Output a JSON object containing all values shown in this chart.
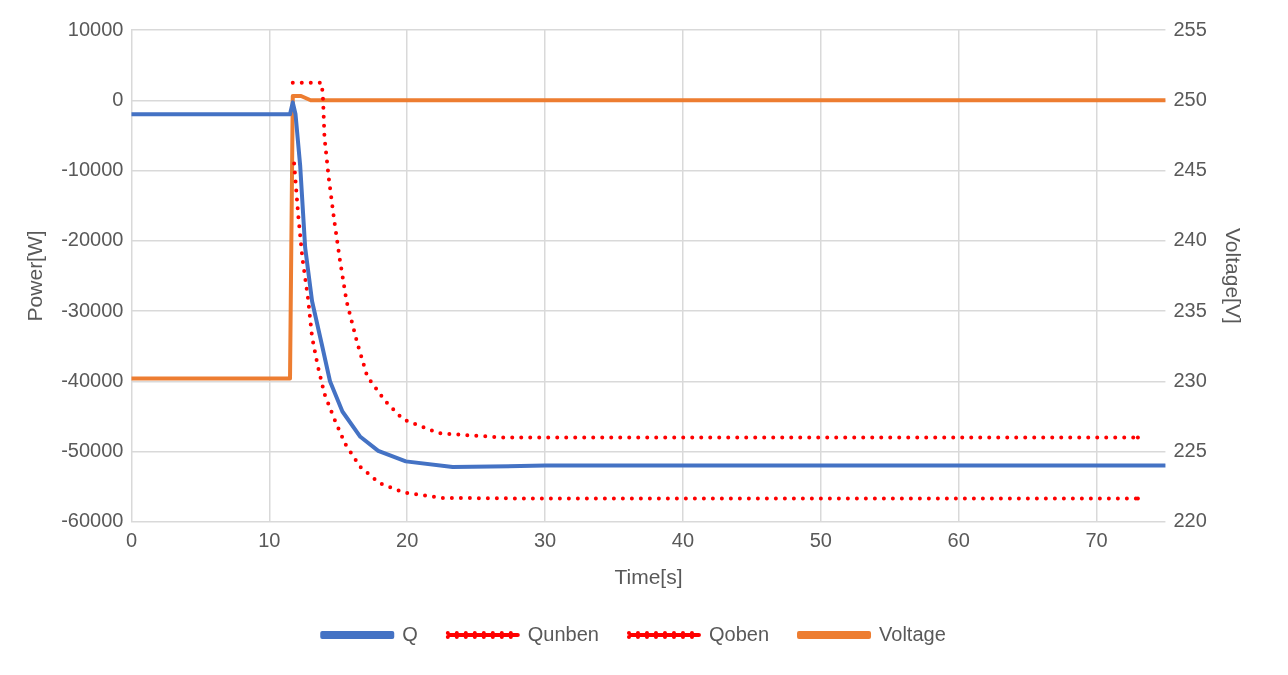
{
  "chart_data": {
    "type": "line",
    "xlabel": "Time[s]",
    "ylabel": "Power[W]",
    "y2label": "Voltage[V]",
    "xlim": [
      0,
      75
    ],
    "xticks": [
      0,
      10,
      20,
      30,
      40,
      50,
      60,
      70
    ],
    "ylim": [
      -60000,
      10000
    ],
    "yticks": [
      -60000,
      -50000,
      -40000,
      -30000,
      -20000,
      -10000,
      0,
      10000
    ],
    "y2lim": [
      220,
      255
    ],
    "y2ticks": [
      220,
      225,
      230,
      235,
      240,
      245,
      250,
      255
    ],
    "grid": true,
    "legend": "bottom",
    "marker": "none",
    "series": [
      {
        "name": "Q",
        "color": "#4472c4",
        "line_style": "solid",
        "x": [
          0,
          11.5,
          11.7,
          11.9,
          12.24,
          12.6,
          13.1,
          13.8,
          14.4,
          15.3,
          16.6,
          17.9,
          19.9,
          23.3,
          30,
          40,
          50,
          60,
          70,
          75
        ],
        "values": [
          -2000,
          -2000,
          -300,
          -2000,
          -9400,
          -21000,
          -28600,
          -34700,
          -40000,
          -44300,
          -47900,
          -49900,
          -51400,
          -52200,
          -52000,
          -52000,
          -52000,
          -52000,
          -52000,
          -52000
        ]
      },
      {
        "name": "Qunben",
        "color": "#ff0000",
        "line_style": "dotted",
        "x": [
          11.7,
          13.8,
          13.9,
          14.0,
          14.3,
          14.7,
          15.1,
          15.6,
          16.4,
          17.1,
          18.4,
          19.7,
          22.3,
          26.9,
          40,
          60,
          73
        ],
        "values": [
          2500,
          2500,
          0,
          -5300,
          -10900,
          -17000,
          -22500,
          -28600,
          -34700,
          -39300,
          -42800,
          -45400,
          -47400,
          -48000,
          -48000,
          -48000,
          -48000
        ]
      },
      {
        "name": "Qoben",
        "color": "#ff0000",
        "line_style": "dotted",
        "x": [
          11.8,
          12.1,
          12.4,
          12.8,
          13.1,
          13.5,
          14.0,
          14.7,
          15.5,
          16.6,
          18.0,
          19.7,
          22.5,
          30,
          50,
          73
        ],
        "values": [
          -9000,
          -16500,
          -22500,
          -28100,
          -33700,
          -37700,
          -41800,
          -45300,
          -48900,
          -52200,
          -54500,
          -55800,
          -56600,
          -56700,
          -56700,
          -56700
        ]
      },
      {
        "name": "Voltage",
        "color": "#ed7d31",
        "line_style": "solid",
        "axis": "y2",
        "x": [
          0,
          11.5,
          11.7,
          12.3,
          13,
          20,
          30,
          40,
          50,
          60,
          70,
          75
        ],
        "values": [
          230.2,
          230.2,
          250.3,
          250.3,
          250,
          250,
          250,
          250,
          250,
          250,
          250,
          250
        ]
      }
    ]
  }
}
